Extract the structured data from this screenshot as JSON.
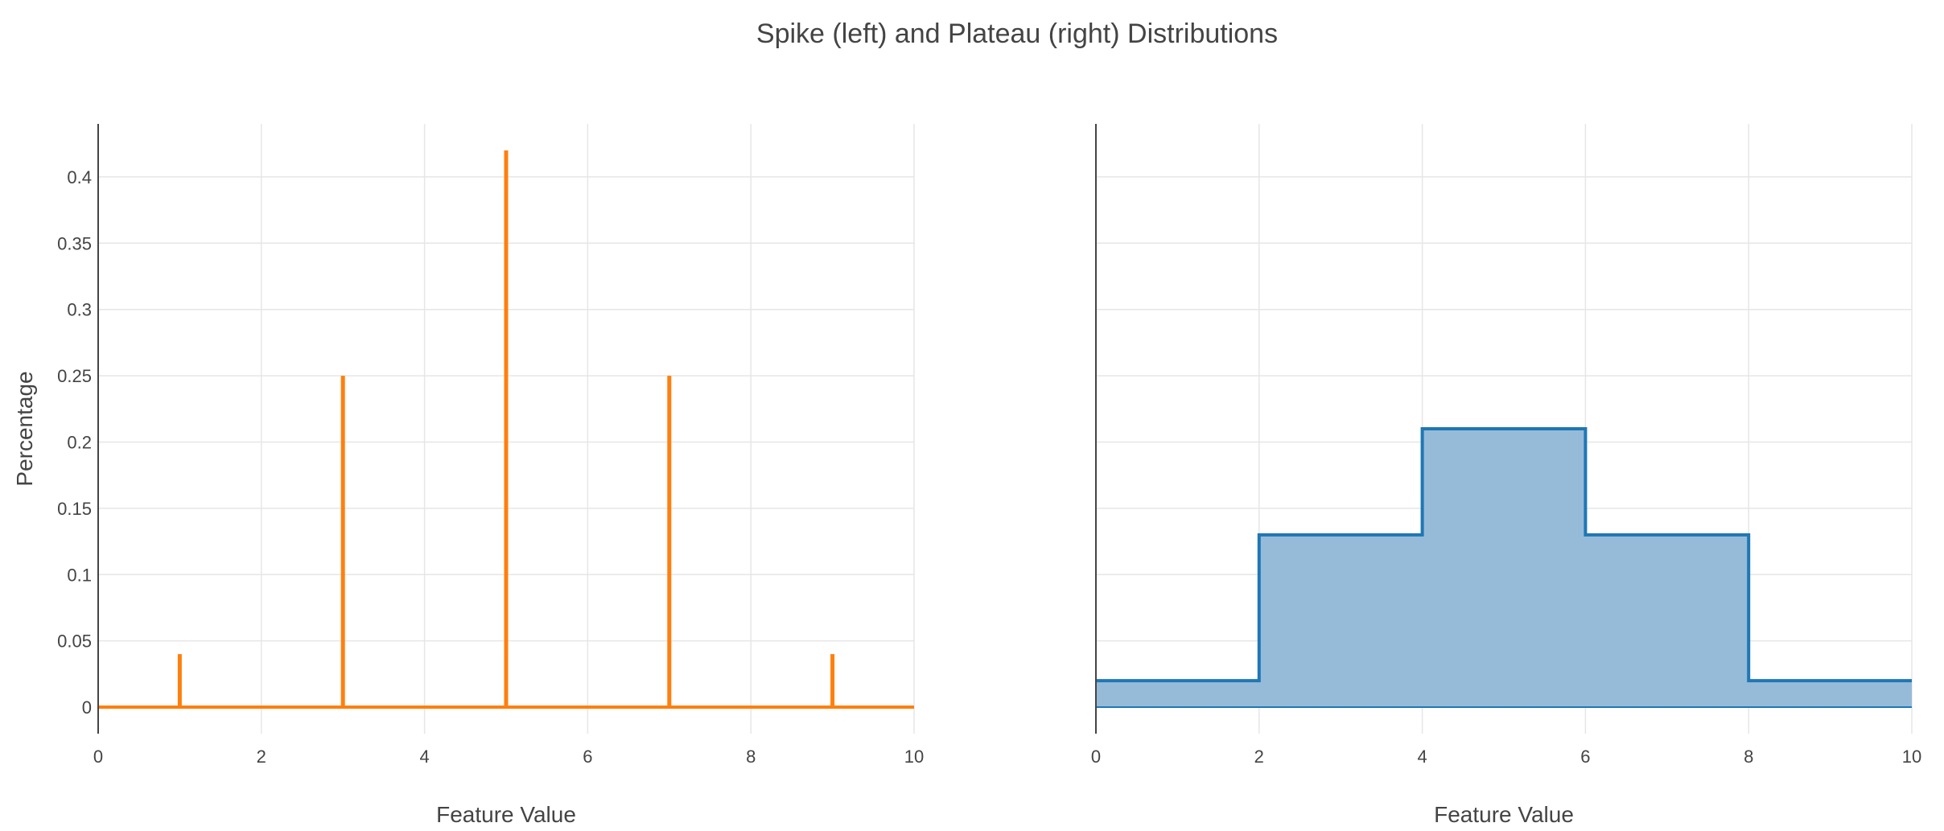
{
  "title": "Spike (left) and Plateau (right) Distributions",
  "colors": {
    "spike": "#ff7f0e",
    "plateau_line": "#1f77b4",
    "plateau_fill": "#96bbd9",
    "grid": "#e6e6e6",
    "axis": "#444444"
  },
  "chart_data": [
    {
      "name": "spike",
      "type": "line",
      "xlabel": "Feature Value",
      "ylabel": "Percentage",
      "xlim": [
        0,
        10
      ],
      "ylim": [
        -0.02,
        0.44
      ],
      "xticks": [
        0,
        2,
        4,
        6,
        8,
        10
      ],
      "yticks": [
        0,
        0.05,
        0.1,
        0.15,
        0.2,
        0.25,
        0.3,
        0.35,
        0.4
      ],
      "ytick_labels": [
        "0",
        "0.05",
        "0.1",
        "0.15",
        "0.2",
        "0.25",
        "0.3",
        "0.35",
        "0.4"
      ],
      "grid": true,
      "baseline": 0,
      "spikes": [
        {
          "x": 1,
          "y": 0.04
        },
        {
          "x": 3,
          "y": 0.25
        },
        {
          "x": 5,
          "y": 0.42
        },
        {
          "x": 7,
          "y": 0.25
        },
        {
          "x": 9,
          "y": 0.04
        }
      ]
    },
    {
      "name": "plateau",
      "type": "area",
      "xlabel": "Feature Value",
      "ylabel": "",
      "xlim": [
        0,
        10
      ],
      "ylim": [
        -0.02,
        0.44
      ],
      "xticks": [
        0,
        2,
        4,
        6,
        8,
        10
      ],
      "yticks": [
        0,
        0.05,
        0.1,
        0.15,
        0.2,
        0.25,
        0.3,
        0.35,
        0.4
      ],
      "grid": true,
      "steps": [
        {
          "x0": 0,
          "x1": 2,
          "y": 0.02
        },
        {
          "x0": 2,
          "x1": 4,
          "y": 0.13
        },
        {
          "x0": 4,
          "x1": 6,
          "y": 0.21
        },
        {
          "x0": 6,
          "x1": 8,
          "y": 0.13
        },
        {
          "x0": 8,
          "x1": 10,
          "y": 0.02
        }
      ]
    }
  ]
}
